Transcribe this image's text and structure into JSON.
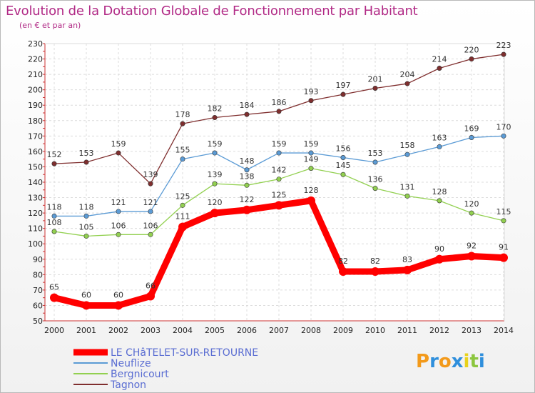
{
  "title": "Evolution de la Dotation Globale de Fonctionnement par Habitant",
  "subtitle": "(en € et par an)",
  "logo": {
    "text": "Proxiti",
    "letter_colors": [
      "#f39a1b",
      "#2f8fdc",
      "#f39a1b",
      "#2f8fdc",
      "#e8d21c",
      "#8cc63f",
      "#2f8fdc"
    ]
  },
  "chart_data": {
    "type": "line",
    "title": "Evolution de la Dotation Globale de Fonctionnement par Habitant",
    "subtitle": "(en € et par an)",
    "x": [
      "2000",
      "2001",
      "2002",
      "2003",
      "2004",
      "2005",
      "2006",
      "2007",
      "2008",
      "2009",
      "2010",
      "2011",
      "2012",
      "2013",
      "2014"
    ],
    "ylim": [
      50,
      230
    ],
    "yticks": [
      50,
      60,
      70,
      80,
      90,
      100,
      110,
      120,
      130,
      140,
      150,
      160,
      170,
      180,
      190,
      200,
      210,
      220,
      230
    ],
    "grid": true,
    "legend_position": "bottom-left",
    "series": [
      {
        "name": "LE CHâTELET-SUR-RETOURNE",
        "color": "#ff0000",
        "values": [
          65,
          60,
          60,
          66,
          111,
          120,
          122,
          125,
          128,
          82,
          82,
          83,
          90,
          92,
          91
        ]
      },
      {
        "name": "Neuflize",
        "color": "#5b9bd5",
        "values": [
          118,
          118,
          121,
          121,
          155,
          159,
          148,
          159,
          159,
          156,
          153,
          158,
          163,
          169,
          170
        ]
      },
      {
        "name": "Bergnicourt",
        "color": "#92d050",
        "values": [
          108,
          105,
          106,
          106,
          125,
          139,
          138,
          142,
          149,
          145,
          136,
          131,
          128,
          120,
          115
        ]
      },
      {
        "name": "Tagnon",
        "color": "#7f2e2e",
        "values": [
          152,
          153,
          159,
          139,
          178,
          182,
          184,
          186,
          193,
          197,
          201,
          204,
          214,
          220,
          223
        ]
      }
    ]
  }
}
